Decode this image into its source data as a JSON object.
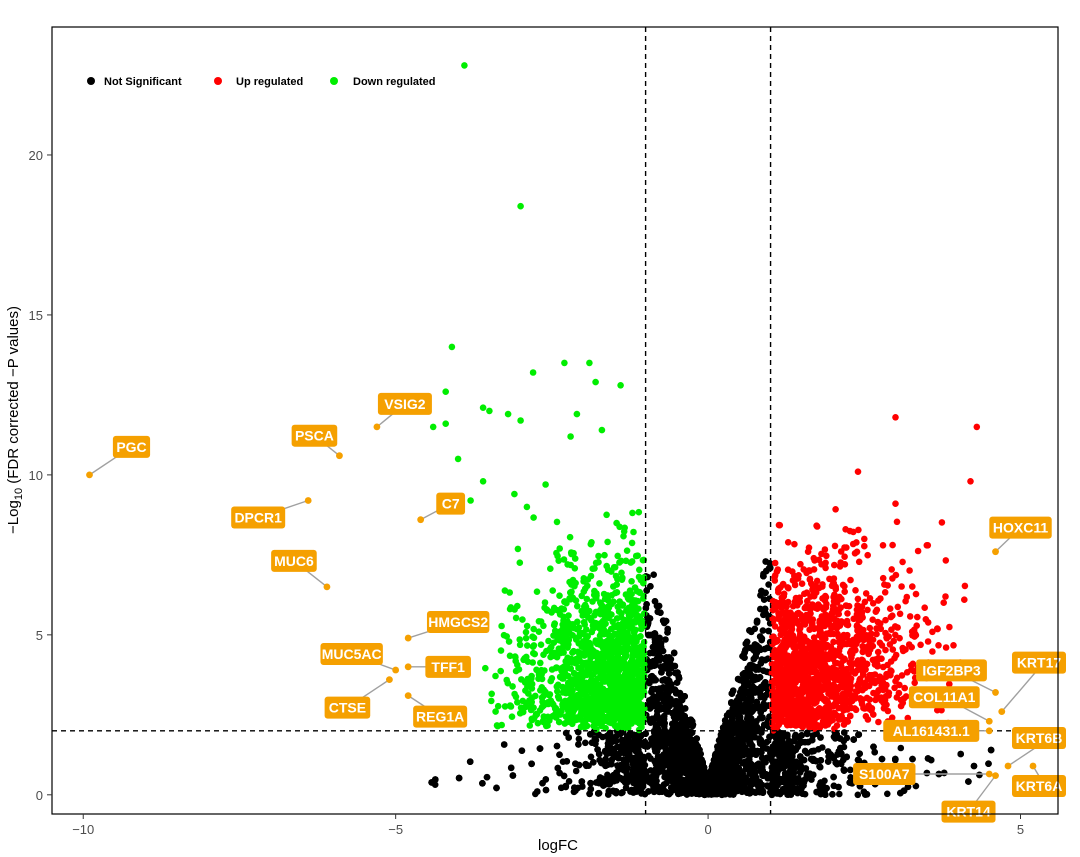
{
  "chart_data": {
    "type": "scatter",
    "title": "",
    "xlabel": "logFC",
    "ylabel_main": "−Log",
    "ylabel_sub": "10",
    "ylabel_rest": " (FDR corrected −P values)",
    "xlim": [
      -10.5,
      5.6
    ],
    "ylim": [
      -0.6,
      24.0
    ],
    "xticks": [
      -10,
      -5,
      0,
      5
    ],
    "xtick_labels": [
      "−10",
      "−5",
      "0",
      "5"
    ],
    "yticks": [
      0,
      5,
      10,
      15,
      20
    ],
    "ytick_labels": [
      "0",
      "5",
      "10",
      "15",
      "20"
    ],
    "thresholds": {
      "logFC": [
        -1,
        1
      ],
      "neglog10p": 2
    },
    "grid": false,
    "legend_position": "top-left",
    "colors": {
      "not_significant": "#000000",
      "up": "#ff0000",
      "down": "#00ee00",
      "highlight": "#f5a000"
    },
    "series": [
      {
        "name": "Not Significant",
        "color": "#000000",
        "note": "dense cloud around logFC 0 below thresholds"
      },
      {
        "name": "Up regulated",
        "color": "#ff0000",
        "x": [
          3.0,
          4.3,
          2.4,
          4.2,
          3.0,
          2.2,
          2.5,
          2.8,
          3.5,
          3.8,
          4.1,
          2.0,
          1.6
        ],
        "y": [
          11.8,
          11.5,
          10.1,
          9.8,
          9.1,
          8.3,
          8.0,
          7.8,
          7.8,
          6.2,
          6.1,
          6.6,
          7.6
        ]
      },
      {
        "name": "Down regulated",
        "color": "#00ee00",
        "x": [
          -3.9,
          -3.0,
          -4.1,
          -4.2,
          -2.3,
          -2.8,
          -3.6,
          -3.5,
          -3.2,
          -1.9,
          -1.4,
          -2.1,
          -1.8,
          -3.0,
          -4.2,
          -4.4,
          -4.0,
          -2.2,
          -1.7,
          -2.6,
          -3.1,
          -3.6,
          -3.8,
          -4.0,
          -2.9,
          -3.4
        ],
        "y": [
          22.8,
          18.4,
          14.0,
          12.6,
          13.5,
          13.2,
          12.1,
          12.0,
          11.9,
          13.5,
          12.8,
          11.9,
          12.9,
          11.7,
          11.6,
          11.5,
          10.5,
          11.2,
          11.4,
          9.7,
          9.4,
          9.8,
          9.2,
          8.9,
          9.0,
          2.6
        ]
      }
    ],
    "highlighted_genes": [
      {
        "name": "PGC",
        "x": -9.9,
        "y": 10.0
      },
      {
        "name": "VSIG2",
        "x": -5.3,
        "y": 11.5
      },
      {
        "name": "PSCA",
        "x": -5.9,
        "y": 10.6
      },
      {
        "name": "DPCR1",
        "x": -6.4,
        "y": 9.2
      },
      {
        "name": "C7",
        "x": -4.6,
        "y": 8.6
      },
      {
        "name": "MUC6",
        "x": -6.1,
        "y": 6.5
      },
      {
        "name": "HMGCS2",
        "x": -4.8,
        "y": 4.9
      },
      {
        "name": "MUC5AC",
        "x": -5.0,
        "y": 3.9
      },
      {
        "name": "TFF1",
        "x": -4.8,
        "y": 4.0
      },
      {
        "name": "CTSE",
        "x": -5.1,
        "y": 3.6
      },
      {
        "name": "REG1A",
        "x": -4.8,
        "y": 3.1
      },
      {
        "name": "HOXC11",
        "x": 4.6,
        "y": 7.6
      },
      {
        "name": "IGF2BP3",
        "x": 4.6,
        "y": 3.2
      },
      {
        "name": "KRT17",
        "x": 4.7,
        "y": 2.6
      },
      {
        "name": "COL11A1",
        "x": 4.5,
        "y": 2.3
      },
      {
        "name": "AL161431.1",
        "x": 4.5,
        "y": 2.0
      },
      {
        "name": "KRT6B",
        "x": 4.8,
        "y": 0.9
      },
      {
        "name": "S100A7",
        "x": 4.5,
        "y": 0.65
      },
      {
        "name": "KRT6A",
        "x": 5.2,
        "y": 0.9
      },
      {
        "name": "KRT14",
        "x": 4.6,
        "y": 0.6
      }
    ]
  }
}
